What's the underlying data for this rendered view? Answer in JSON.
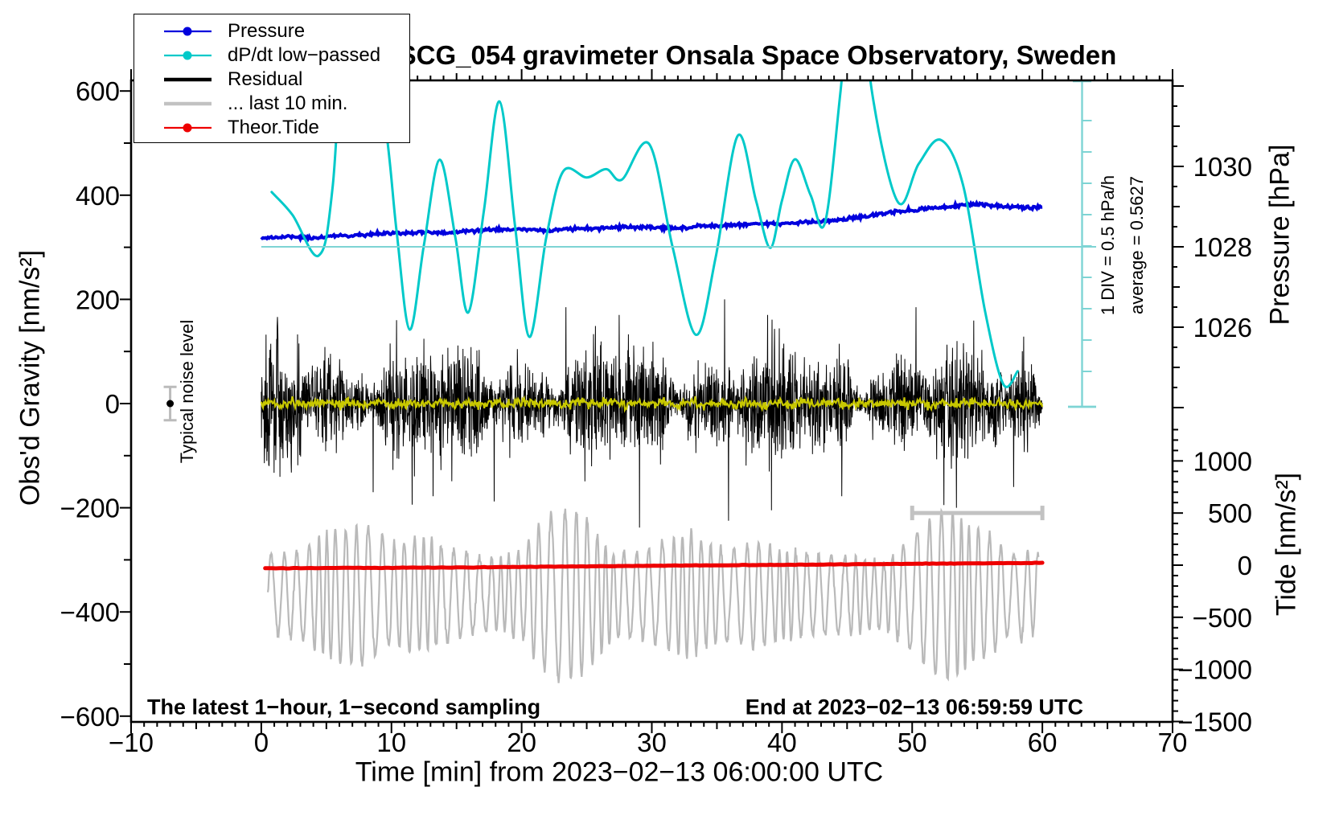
{
  "title": "SCG_054 gravimeter Onsala Space Observatory, Sweden",
  "notes": {
    "sampling": "The latest 1−hour, 1−second sampling",
    "end": "End at 2023−02−13 06:59:59 UTC",
    "noise": "Typical noise level",
    "div_scale": "1 DIV = 0.5 hPa/h",
    "div_average": "average = 0.5627"
  },
  "colors": {
    "pressure": "#0000dd",
    "dpdt": "#00c9c9",
    "dpdt_light": "#7ed4d4",
    "residual": "#000000",
    "last10": "#b9b9b9",
    "tide_red": "#ee0000",
    "filtered_yellow": "#c8c800",
    "marker_gray": "#c2c2c2",
    "noise_err_gray": "#bbbbbb",
    "frame": "#000000"
  },
  "legend": [
    {
      "label": "Pressure",
      "color_key": "pressure",
      "width": 2.2,
      "dot": true
    },
    {
      "label": "dP/dt low−passed",
      "color_key": "dpdt",
      "width": 2.2,
      "dot": true
    },
    {
      "label": "Residual",
      "color_key": "residual",
      "width": 4.5,
      "dot": false
    },
    {
      "label": "... last 10 min.",
      "color_key": "marker_gray",
      "width": 4.5,
      "dot": false
    },
    {
      "label": "Theor.Tide",
      "color_key": "tide_red",
      "width": 2.2,
      "dot": true
    }
  ],
  "axes": {
    "x": {
      "label": "Time [min] from 2023−02−13 06:00:00 UTC",
      "min": -10,
      "max": 70,
      "minor_step": 1,
      "medium_step": 5,
      "major_step": 10,
      "major_tick_values": [
        -10,
        0,
        10,
        20,
        30,
        40,
        50,
        60,
        70
      ],
      "major_tick_labels": [
        "−10",
        "0",
        "10",
        "20",
        "30",
        "40",
        "50",
        "60",
        "70"
      ]
    },
    "gravity": {
      "label": "Obs'd Gravity [nm/s²]",
      "min": -600,
      "max": 600,
      "minor_step": 100,
      "major_step": 200,
      "major_tick_values": [
        600,
        400,
        200,
        0,
        -200,
        -400,
        -600
      ],
      "major_tick_labels": [
        "600",
        "400",
        "200",
        "0",
        "−200",
        "−400",
        "−600"
      ]
    },
    "pressure": {
      "label": "Pressure [hPa]",
      "shown_range": [
        1024,
        1032
      ],
      "minor_step": 0.5,
      "medium_step": 1,
      "major_tick_values": [
        1030,
        1028,
        1026
      ],
      "major_tick_labels": [
        "1030",
        "1028",
        "1026"
      ]
    },
    "tide": {
      "label": "Tide [nm/s²]",
      "shown_range": [
        -1500,
        1300
      ],
      "minor_step": 100,
      "major_step": 500,
      "major_tick_values": [
        1000,
        500,
        0,
        -500,
        -1000,
        -1500
      ],
      "major_tick_labels": [
        "1000",
        "500",
        "0",
        "−500",
        "−1000",
        "−1500"
      ]
    }
  },
  "chart_data": {
    "type": "line",
    "x_range_min": [
      -10,
      70
    ],
    "series": [
      {
        "name": "Pressure",
        "axis": "pressure",
        "color_key": "pressure",
        "points": [
          [
            0,
            1028.22
          ],
          [
            2,
            1028.25
          ],
          [
            4,
            1028.22
          ],
          [
            6,
            1028.28
          ],
          [
            8,
            1028.3
          ],
          [
            10,
            1028.34
          ],
          [
            12,
            1028.36
          ],
          [
            14,
            1028.34
          ],
          [
            16,
            1028.4
          ],
          [
            18,
            1028.42
          ],
          [
            20,
            1028.44
          ],
          [
            22,
            1028.4
          ],
          [
            24,
            1028.46
          ],
          [
            26,
            1028.46
          ],
          [
            28,
            1028.5
          ],
          [
            30,
            1028.48
          ],
          [
            32,
            1028.46
          ],
          [
            34,
            1028.52
          ],
          [
            36,
            1028.54
          ],
          [
            38,
            1028.56
          ],
          [
            40,
            1028.58
          ],
          [
            42,
            1028.62
          ],
          [
            44,
            1028.64
          ],
          [
            46,
            1028.74
          ],
          [
            48,
            1028.84
          ],
          [
            50,
            1028.92
          ],
          [
            52,
            1028.98
          ],
          [
            54,
            1029.04
          ],
          [
            55,
            1029.06
          ],
          [
            56,
            1029.02
          ],
          [
            57,
            1029.0
          ],
          [
            58,
            1029.0
          ],
          [
            59,
            1028.98
          ],
          [
            60,
            1028.98
          ]
        ]
      },
      {
        "name": "dP/dt low−passed",
        "axis": "gravity_display",
        "color_key": "dpdt",
        "note": "plotted on gravity axis, scale 1 DIV = 0.5 hPa/h",
        "points": [
          [
            0.8,
            406
          ],
          [
            2.4,
            362
          ],
          [
            4.4,
            284
          ],
          [
            5.5,
            420
          ],
          [
            7.0,
            900
          ],
          [
            9.4,
            560
          ],
          [
            10.4,
            330
          ],
          [
            11.4,
            142
          ],
          [
            12.5,
            305
          ],
          [
            13.7,
            468
          ],
          [
            14.9,
            320
          ],
          [
            15.9,
            175
          ],
          [
            17.1,
            370
          ],
          [
            18.3,
            580
          ],
          [
            19.5,
            340
          ],
          [
            20.6,
            128
          ],
          [
            21.9,
            320
          ],
          [
            23.2,
            446
          ],
          [
            25.0,
            434
          ],
          [
            26.5,
            450
          ],
          [
            27.7,
            430
          ],
          [
            29.8,
            498
          ],
          [
            31.6,
            300
          ],
          [
            33.4,
            132
          ],
          [
            34.9,
            280
          ],
          [
            36.6,
            514
          ],
          [
            38.0,
            390
          ],
          [
            39.1,
            299
          ],
          [
            40.0,
            390
          ],
          [
            41.0,
            469
          ],
          [
            42.2,
            400
          ],
          [
            43.3,
            347
          ],
          [
            44.5,
            600
          ],
          [
            45.7,
            900
          ],
          [
            46.9,
            600
          ],
          [
            48.9,
            387
          ],
          [
            50.5,
            460
          ],
          [
            52.2,
            506
          ],
          [
            53.9,
            420
          ],
          [
            55.6,
            177
          ],
          [
            57.0,
            37
          ],
          [
            58.1,
            62
          ]
        ]
      },
      {
        "name": "Residual",
        "axis": "gravity",
        "color_key": "residual",
        "synthetic": true,
        "mean": 0,
        "base_std": 50,
        "n": 2800,
        "seed": 1234,
        "spikes": [
          [
            35.6,
            200
          ],
          [
            35.9,
            -225
          ],
          [
            38.9,
            170
          ],
          [
            39.2,
            -205
          ],
          [
            23.4,
            185
          ],
          [
            13.2,
            -178
          ],
          [
            53.4,
            -200
          ],
          [
            50.3,
            185
          ],
          [
            8.6,
            -170
          ],
          [
            17.9,
            -188
          ],
          [
            27.5,
            170
          ],
          [
            44.6,
            -178
          ],
          [
            57.8,
            -160
          ],
          [
            10.4,
            160
          ]
        ]
      },
      {
        "name": "Residual low−passed",
        "axis": "gravity",
        "color_key": "filtered_yellow",
        "synthetic": true,
        "mean": 0,
        "std": 4.6,
        "n": 900
      },
      {
        "name": "... last 10 min.",
        "axis": "tide",
        "color_key": "last10",
        "synthetic": true,
        "center": -285,
        "period_min": 0.85,
        "n": 1500,
        "amplitude_envelope": [
          [
            0.5,
            380
          ],
          [
            3,
            420
          ],
          [
            5,
            600
          ],
          [
            7,
            650
          ],
          [
            8,
            680
          ],
          [
            10,
            480
          ],
          [
            12,
            560
          ],
          [
            14,
            470
          ],
          [
            16,
            380
          ],
          [
            18,
            350
          ],
          [
            20,
            420
          ],
          [
            21.5,
            700
          ],
          [
            23,
            830
          ],
          [
            24.5,
            800
          ],
          [
            25.5,
            650
          ],
          [
            27,
            420
          ],
          [
            29,
            400
          ],
          [
            31,
            520
          ],
          [
            33,
            600
          ],
          [
            34,
            520
          ],
          [
            36,
            430
          ],
          [
            38,
            520
          ],
          [
            40,
            430
          ],
          [
            42,
            400
          ],
          [
            44,
            380
          ],
          [
            46,
            350
          ],
          [
            48,
            330
          ],
          [
            50,
            560
          ],
          [
            51.5,
            750
          ],
          [
            52.5,
            820
          ],
          [
            53.5,
            780
          ],
          [
            54.5,
            650
          ],
          [
            55.5,
            620
          ],
          [
            56.5,
            520
          ],
          [
            57.5,
            380
          ],
          [
            58.5,
            420
          ],
          [
            59.5,
            380
          ],
          [
            60,
            360
          ]
        ]
      },
      {
        "name": "Theor.Tide",
        "axis": "tide",
        "color_key": "tide_red",
        "points": [
          [
            0.3,
            -30
          ],
          [
            15,
            -22
          ],
          [
            30,
            -6
          ],
          [
            45,
            8
          ],
          [
            60,
            22
          ]
        ]
      }
    ],
    "annotations": {
      "pressure_average_line_hpa": 1028,
      "dpdt_scale_bar": {
        "position_t": 63,
        "divisions": 9,
        "div_value_hpa_per_h": 0.5,
        "average_hpa_per_h": 0.5627
      },
      "last10_range_bar": {
        "t_start": 50,
        "t_end": 60,
        "gravity_level": -210
      },
      "noise_marker": {
        "t": -7,
        "value": 0,
        "error": 32
      }
    }
  }
}
